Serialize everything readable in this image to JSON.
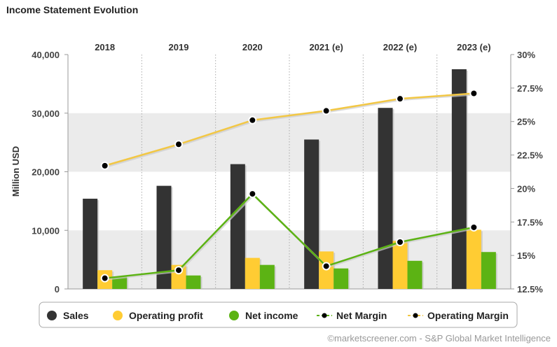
{
  "chart_data": {
    "type": "bar",
    "title": "Income Statement Evolution",
    "categories": [
      "2018",
      "2019",
      "2020",
      "2021 (e)",
      "2022 (e)",
      "2023 (e)"
    ],
    "ylabel": "Million USD",
    "ylim": [
      0,
      40000
    ],
    "yticks": [
      0,
      10000,
      20000,
      30000,
      40000
    ],
    "yticks_labels": [
      "0",
      "10,000",
      "20,000",
      "30,000",
      "40,000"
    ],
    "y2lim": [
      12.5,
      30
    ],
    "y2ticks": [
      12.5,
      15,
      17.5,
      20,
      22.5,
      25,
      27.5,
      30
    ],
    "y2ticks_labels": [
      "12.5%",
      "15%",
      "17.5%",
      "20%",
      "22.5%",
      "25%",
      "27.5%",
      "30%"
    ],
    "series": [
      {
        "name": "Sales",
        "kind": "bar",
        "axis": "left",
        "color": "#333333",
        "values": [
          15400,
          17600,
          21300,
          25500,
          30900,
          37500
        ]
      },
      {
        "name": "Operating profit",
        "kind": "bar",
        "axis": "left",
        "color": "#ffcc33",
        "values": [
          3200,
          4100,
          5300,
          6400,
          8200,
          10100
        ]
      },
      {
        "name": "Net income",
        "kind": "bar",
        "axis": "left",
        "color": "#5cb314",
        "values": [
          2100,
          2300,
          4100,
          3500,
          4800,
          6300
        ]
      },
      {
        "name": "Net Margin",
        "kind": "line",
        "axis": "right",
        "color": "#5cb314",
        "values": [
          13.3,
          13.9,
          19.6,
          14.2,
          16.0,
          17.1
        ]
      },
      {
        "name": "Operating Margin",
        "kind": "line",
        "axis": "right",
        "color": "#f2c744",
        "values": [
          21.7,
          23.3,
          25.1,
          25.8,
          26.7,
          27.1
        ]
      }
    ],
    "grid": "horizontal-bands",
    "legend_position": "bottom"
  },
  "footer": "©marketscreener.com - S&P Global Market Intelligence"
}
